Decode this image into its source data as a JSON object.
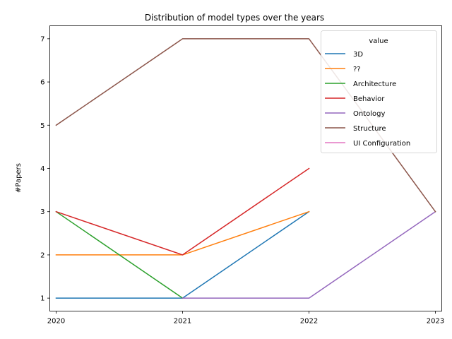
{
  "chart_data": {
    "type": "line",
    "title": "Distribution of model types over the years",
    "xlabel": "",
    "ylabel": "#Papers",
    "x": [
      "2020",
      "2021",
      "2022",
      "2023"
    ],
    "yticks": [
      "1",
      "2",
      "3",
      "4",
      "5",
      "6",
      "7"
    ],
    "ylim": [
      0.7,
      7.3
    ],
    "grid": false,
    "legend": {
      "title": "value",
      "placement": "top-right"
    },
    "series": [
      {
        "name": "3D",
        "color": "#1f77b4",
        "points": [
          [
            "2020",
            1
          ],
          [
            "2021",
            1
          ],
          [
            "2022",
            3
          ]
        ]
      },
      {
        "name": "??",
        "color": "#ff7f0e",
        "points": [
          [
            "2020",
            2
          ],
          [
            "2021",
            2
          ],
          [
            "2022",
            3
          ]
        ]
      },
      {
        "name": "Architecture",
        "color": "#2ca02c",
        "points": [
          [
            "2020",
            3
          ],
          [
            "2021",
            1
          ]
        ]
      },
      {
        "name": "Behavior",
        "color": "#d62728",
        "points": [
          [
            "2020",
            3
          ],
          [
            "2021",
            2
          ],
          [
            "2022",
            4
          ]
        ]
      },
      {
        "name": "Ontology",
        "color": "#9467bd",
        "points": [
          [
            "2021",
            1
          ],
          [
            "2022",
            1
          ],
          [
            "2023",
            3
          ]
        ]
      },
      {
        "name": "Structure",
        "color": "#8c564b",
        "points": [
          [
            "2020",
            5
          ],
          [
            "2021",
            7
          ],
          [
            "2022",
            7
          ],
          [
            "2023",
            3
          ]
        ]
      },
      {
        "name": "UI Configuration",
        "color": "#e377c2",
        "points": []
      }
    ]
  }
}
